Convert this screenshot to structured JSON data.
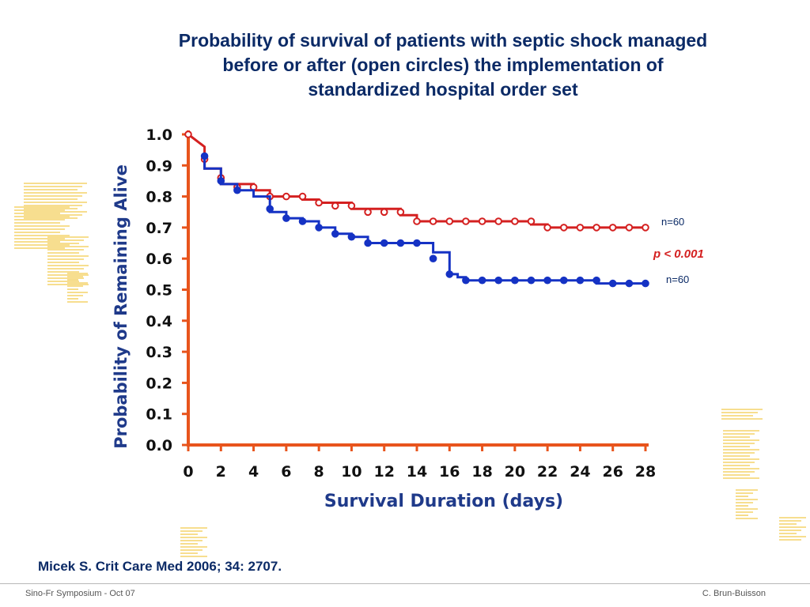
{
  "title_lines": [
    "Probability of survival of patients with septic shock managed",
    "before or after (open circles) the implementation of",
    "standardized hospital order set"
  ],
  "citation": "Micek S. Crit Care Med 2006; 34: 2707.",
  "footer": {
    "left": "Sino-Fr Symposium - Oct  07",
    "right": "C. Brun-Buisson"
  },
  "colors": {
    "title": "#0b2a66",
    "axis": "#e8541c",
    "axis_label": "#1f3a8a",
    "after_series": "#d42020",
    "before_series": "#1532c4",
    "decoration": "#f2c94c"
  },
  "chart_data": {
    "type": "line",
    "step": true,
    "xlabel": "Survival Duration (days)",
    "ylabel": "Probability of Remaining Alive",
    "xlim": [
      0,
      28
    ],
    "ylim": [
      0,
      1.0
    ],
    "x_ticks": [
      "0",
      "2",
      "4",
      "6",
      "8",
      "10",
      "12",
      "14",
      "16",
      "18",
      "20",
      "22",
      "24",
      "26",
      "28"
    ],
    "y_ticks": [
      "0.0",
      "0.1",
      "0.2",
      "0.3",
      "0.4",
      "0.5",
      "0.6",
      "0.7",
      "0.8",
      "0.9",
      "1.0"
    ],
    "grid": false,
    "series": [
      {
        "marker": "open-circle",
        "color": "#d42020",
        "steps": [
          [
            0,
            1.0
          ],
          [
            1,
            0.96
          ],
          [
            1,
            0.89
          ],
          [
            2,
            0.89
          ],
          [
            2,
            0.84
          ],
          [
            4,
            0.84
          ],
          [
            4,
            0.82
          ],
          [
            5,
            0.82
          ],
          [
            5,
            0.8
          ],
          [
            7,
            0.8
          ],
          [
            7,
            0.79
          ],
          [
            8,
            0.79
          ],
          [
            8,
            0.78
          ],
          [
            10,
            0.78
          ],
          [
            10,
            0.76
          ],
          [
            13,
            0.76
          ],
          [
            13,
            0.74
          ],
          [
            14,
            0.74
          ],
          [
            14,
            0.72
          ],
          [
            21,
            0.72
          ],
          [
            21,
            0.71
          ],
          [
            22,
            0.71
          ],
          [
            22,
            0.7
          ],
          [
            28,
            0.7
          ]
        ],
        "points": [
          [
            0,
            1.0
          ],
          [
            1,
            0.92
          ],
          [
            2,
            0.86
          ],
          [
            3,
            0.83
          ],
          [
            4,
            0.83
          ],
          [
            5,
            0.8
          ],
          [
            6,
            0.8
          ],
          [
            7,
            0.8
          ],
          [
            8,
            0.78
          ],
          [
            9,
            0.77
          ],
          [
            10,
            0.77
          ],
          [
            11,
            0.75
          ],
          [
            12,
            0.75
          ],
          [
            13,
            0.75
          ],
          [
            14,
            0.72
          ],
          [
            15,
            0.72
          ],
          [
            16,
            0.72
          ],
          [
            17,
            0.72
          ],
          [
            18,
            0.72
          ],
          [
            19,
            0.72
          ],
          [
            20,
            0.72
          ],
          [
            21,
            0.72
          ],
          [
            22,
            0.7
          ],
          [
            23,
            0.7
          ],
          [
            24,
            0.7
          ],
          [
            25,
            0.7
          ],
          [
            26,
            0.7
          ],
          [
            27,
            0.7
          ],
          [
            28,
            0.7
          ]
        ]
      },
      {
        "marker": "filled-circle",
        "color": "#1532c4",
        "steps": [
          [
            1,
            0.93
          ],
          [
            1,
            0.89
          ],
          [
            2,
            0.89
          ],
          [
            2,
            0.84
          ],
          [
            3,
            0.84
          ],
          [
            3,
            0.82
          ],
          [
            4,
            0.82
          ],
          [
            4,
            0.8
          ],
          [
            5,
            0.8
          ],
          [
            5,
            0.75
          ],
          [
            6,
            0.75
          ],
          [
            6,
            0.73
          ],
          [
            7,
            0.73
          ],
          [
            7,
            0.72
          ],
          [
            8,
            0.72
          ],
          [
            8,
            0.7
          ],
          [
            9,
            0.7
          ],
          [
            9,
            0.68
          ],
          [
            10,
            0.68
          ],
          [
            10,
            0.67
          ],
          [
            11,
            0.67
          ],
          [
            11,
            0.65
          ],
          [
            15,
            0.65
          ],
          [
            15,
            0.62
          ],
          [
            16,
            0.62
          ],
          [
            16,
            0.55
          ],
          [
            16.5,
            0.55
          ],
          [
            16.5,
            0.54
          ],
          [
            17,
            0.54
          ],
          [
            17,
            0.53
          ],
          [
            25,
            0.53
          ],
          [
            25,
            0.52
          ],
          [
            28,
            0.52
          ]
        ],
        "points": [
          [
            1,
            0.93
          ],
          [
            2,
            0.85
          ],
          [
            3,
            0.82
          ],
          [
            5,
            0.76
          ],
          [
            6,
            0.73
          ],
          [
            7,
            0.72
          ],
          [
            8,
            0.7
          ],
          [
            9,
            0.68
          ],
          [
            10,
            0.67
          ],
          [
            11,
            0.65
          ],
          [
            12,
            0.65
          ],
          [
            13,
            0.65
          ],
          [
            14,
            0.65
          ],
          [
            15,
            0.6
          ],
          [
            16,
            0.55
          ],
          [
            17,
            0.53
          ],
          [
            18,
            0.53
          ],
          [
            19,
            0.53
          ],
          [
            20,
            0.53
          ],
          [
            21,
            0.53
          ],
          [
            22,
            0.53
          ],
          [
            23,
            0.53
          ],
          [
            24,
            0.53
          ],
          [
            25,
            0.53
          ],
          [
            26,
            0.52
          ],
          [
            27,
            0.52
          ],
          [
            28,
            0.52
          ]
        ]
      }
    ],
    "annotations": {
      "n_after": "n=60",
      "n_before": "n=60",
      "p_value": "p < 0.001"
    }
  }
}
